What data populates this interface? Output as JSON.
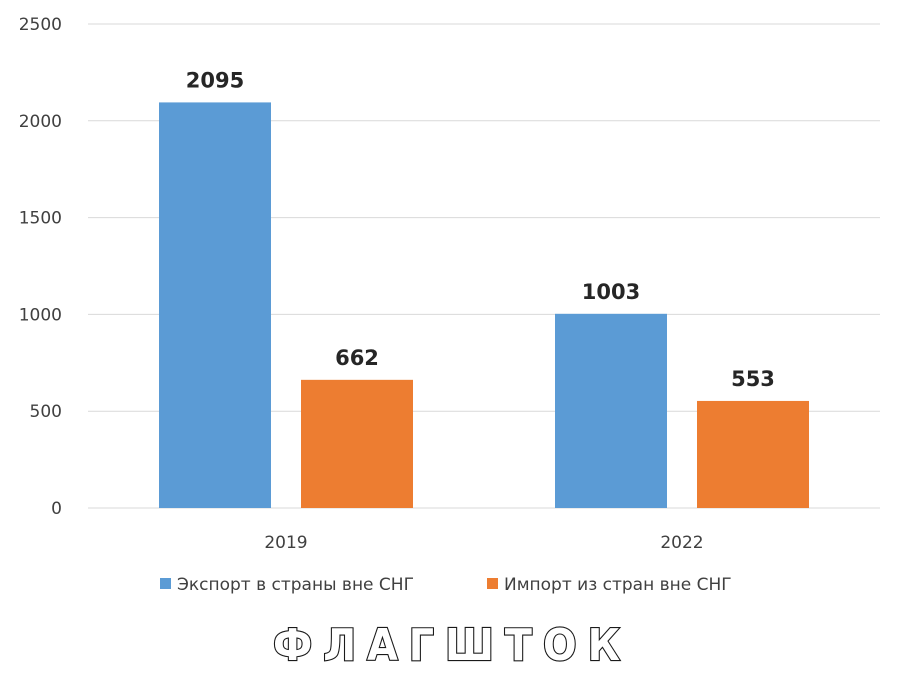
{
  "chart_data": {
    "type": "bar",
    "categories": [
      "2019",
      "2022"
    ],
    "series": [
      {
        "name": "Экспорт в страны вне СНГ",
        "values": [
          2095,
          1003
        ],
        "color": "#5b9bd5"
      },
      {
        "name": "Импорт из стран вне СНГ",
        "values": [
          662,
          553
        ],
        "color": "#ed7d31"
      }
    ],
    "title": "",
    "xlabel": "",
    "ylabel": "",
    "ylim": [
      0,
      2500
    ],
    "yticks": [
      0,
      500,
      1000,
      1500,
      2000,
      2500
    ],
    "grid": true,
    "data_labels": true,
    "legend_position": "bottom"
  },
  "watermark": "ФЛАГШТОК"
}
